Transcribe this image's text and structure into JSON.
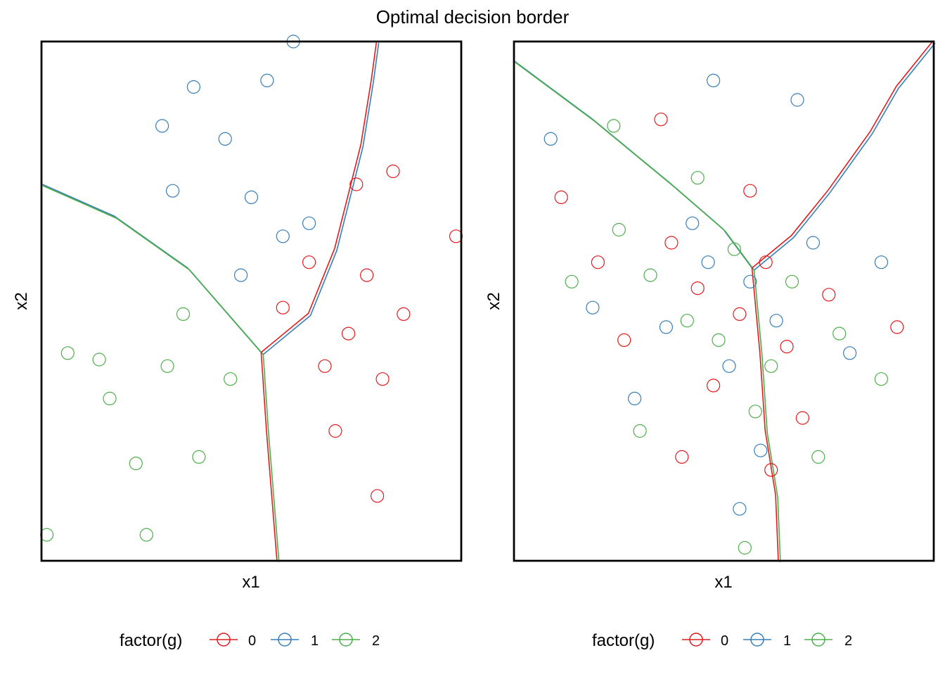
{
  "title": "Optimal decision border",
  "colors": {
    "g0": "#e31a1c",
    "g1": "#377eb8",
    "g2": "#4daf4a"
  },
  "chart_data": [
    {
      "type": "scatter",
      "panel": "left",
      "xlabel": "x1",
      "ylabel": "x2",
      "xlim": [
        -4,
        4
      ],
      "ylim": [
        -4,
        4
      ],
      "grid": false,
      "legend": {
        "title": "factor(g)",
        "position": "bottom",
        "entries": [
          "0",
          "1",
          "2"
        ]
      },
      "series": [
        {
          "name": "0",
          "points": [
            [
              1.85,
              -0.5
            ],
            [
              2.9,
              -0.2
            ],
            [
              2.2,
              0.4
            ],
            [
              1.4,
              -1.0
            ],
            [
              2.5,
              -1.2
            ],
            [
              1.1,
              0.6
            ],
            [
              2.0,
              1.8
            ],
            [
              3.9,
              1.0
            ],
            [
              2.7,
              2.0
            ],
            [
              1.6,
              -2.0
            ],
            [
              2.4,
              -3.0
            ],
            [
              0.6,
              -0.1
            ]
          ]
        },
        {
          "name": "1",
          "points": [
            [
              0.0,
              1.6
            ],
            [
              -0.5,
              2.5
            ],
            [
              0.6,
              1.0
            ],
            [
              -1.1,
              3.3
            ],
            [
              0.3,
              3.4
            ],
            [
              1.1,
              1.2
            ],
            [
              -0.2,
              0.4
            ],
            [
              -1.7,
              2.7
            ],
            [
              -1.5,
              1.7
            ],
            [
              0.8,
              4.0
            ]
          ]
        },
        {
          "name": "2",
          "points": [
            [
              -1.6,
              -1.0
            ],
            [
              -2.9,
              -0.9
            ],
            [
              -2.2,
              -2.5
            ],
            [
              -1.0,
              -2.4
            ],
            [
              -2.7,
              -1.5
            ],
            [
              -1.3,
              -0.2
            ],
            [
              -0.4,
              -1.2
            ],
            [
              -3.5,
              -0.8
            ],
            [
              -2.0,
              -3.6
            ],
            [
              -3.9,
              -3.6
            ]
          ]
        }
      ],
      "boundaries": [
        {
          "between": [
            "1",
            "2"
          ],
          "points": [
            [
              -4,
              1.8
            ],
            [
              -2.6,
              1.3
            ],
            [
              -1.2,
              0.5
            ],
            [
              0.2,
              -0.8
            ]
          ]
        },
        {
          "between": [
            "0",
            "1"
          ],
          "points": [
            [
              0.2,
              -0.8
            ],
            [
              1.1,
              -0.2
            ],
            [
              1.6,
              0.8
            ],
            [
              2.1,
              2.4
            ],
            [
              2.3,
              3.4
            ],
            [
              2.4,
              4.0
            ]
          ]
        },
        {
          "between": [
            "0",
            "2"
          ],
          "points": [
            [
              0.2,
              -0.8
            ],
            [
              0.3,
              -2.0
            ],
            [
              0.4,
              -3.0
            ],
            [
              0.5,
              -4.0
            ]
          ]
        }
      ]
    },
    {
      "type": "scatter",
      "panel": "right",
      "xlabel": "x1",
      "ylabel": "x2",
      "xlim": [
        -4,
        4
      ],
      "ylim": [
        -4,
        4
      ],
      "grid": false,
      "legend": {
        "title": "factor(g)",
        "position": "bottom",
        "entries": [
          "0",
          "1",
          "2"
        ]
      },
      "series": [
        {
          "name": "0",
          "points": [
            [
              -0.5,
              0.2
            ],
            [
              0.3,
              -0.2
            ],
            [
              -1.0,
              0.9
            ],
            [
              0.8,
              0.6
            ],
            [
              -0.2,
              -1.3
            ],
            [
              1.2,
              -0.7
            ],
            [
              -1.9,
              -0.6
            ],
            [
              0.5,
              1.7
            ],
            [
              -0.8,
              -2.4
            ],
            [
              2.0,
              0.1
            ],
            [
              -2.4,
              0.6
            ],
            [
              1.5,
              -1.8
            ],
            [
              -3.1,
              1.6
            ],
            [
              3.3,
              -0.4
            ],
            [
              -1.2,
              2.8
            ],
            [
              0.9,
              -2.6
            ]
          ]
        },
        {
          "name": "1",
          "points": [
            [
              -0.3,
              0.6
            ],
            [
              0.5,
              0.3
            ],
            [
              -1.1,
              -0.4
            ],
            [
              1.0,
              -0.3
            ],
            [
              0.1,
              -1.0
            ],
            [
              -0.6,
              1.2
            ],
            [
              1.7,
              0.9
            ],
            [
              -1.7,
              -1.5
            ],
            [
              0.7,
              -2.3
            ],
            [
              -2.5,
              -0.1
            ],
            [
              2.4,
              -0.8
            ],
            [
              -0.2,
              3.4
            ],
            [
              1.4,
              3.1
            ],
            [
              3.0,
              0.6
            ],
            [
              -3.3,
              2.5
            ],
            [
              0.3,
              -3.2
            ]
          ]
        },
        {
          "name": "2",
          "points": [
            [
              -0.7,
              -0.3
            ],
            [
              0.2,
              0.8
            ],
            [
              -1.4,
              0.4
            ],
            [
              0.9,
              -1.0
            ],
            [
              -0.1,
              -0.6
            ],
            [
              1.3,
              0.3
            ],
            [
              -2.0,
              1.1
            ],
            [
              0.6,
              -1.7
            ],
            [
              -1.6,
              -2.0
            ],
            [
              2.2,
              -0.5
            ],
            [
              -2.9,
              0.3
            ],
            [
              -0.5,
              1.9
            ],
            [
              1.8,
              -2.4
            ],
            [
              -2.1,
              2.7
            ],
            [
              0.4,
              -3.8
            ],
            [
              3.0,
              -1.2
            ]
          ]
        }
      ],
      "boundaries": [
        {
          "between": [
            "1",
            "2"
          ],
          "points": [
            [
              -4,
              3.7
            ],
            [
              -2.5,
              2.8
            ],
            [
              -1.0,
              1.8
            ],
            [
              0.0,
              1.1
            ],
            [
              0.55,
              0.5
            ]
          ]
        },
        {
          "between": [
            "0",
            "1"
          ],
          "points": [
            [
              0.55,
              0.5
            ],
            [
              1.3,
              1.0
            ],
            [
              2.0,
              1.7
            ],
            [
              2.8,
              2.6
            ],
            [
              3.3,
              3.3
            ],
            [
              4.0,
              4.0
            ]
          ]
        },
        {
          "between": [
            "0",
            "2"
          ],
          "points": [
            [
              0.55,
              0.5
            ],
            [
              0.7,
              -0.8
            ],
            [
              0.8,
              -2.0
            ],
            [
              1.0,
              -3.0
            ],
            [
              1.05,
              -4.0
            ]
          ]
        }
      ]
    }
  ]
}
